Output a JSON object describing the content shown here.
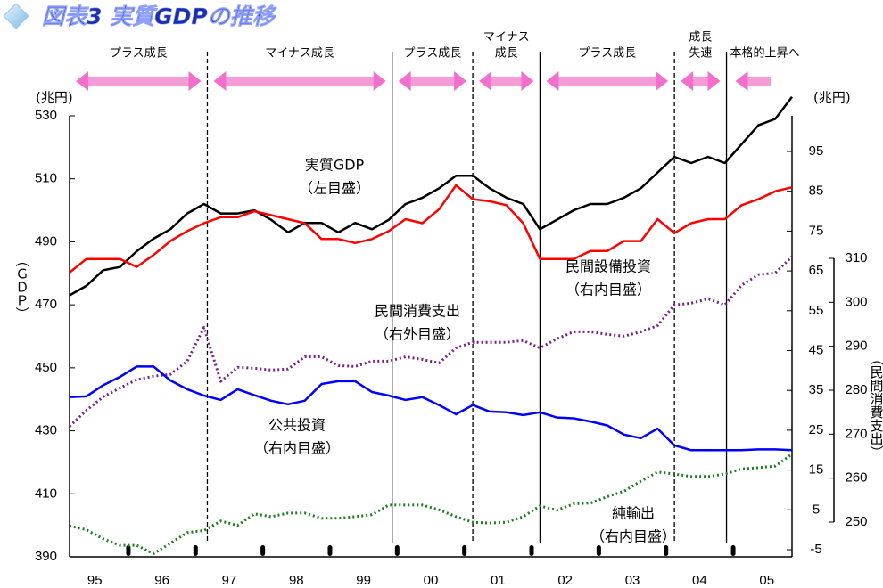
{
  "chart_data": {
    "type": "line",
    "title": "図表3 実質GDPの推移",
    "y_unit": "(兆円)",
    "y2_unit": "(兆円)",
    "y_label": "（ＧＤＰ）",
    "y3_label": "（民間消費支出）",
    "categories": [
      null,
      "95",
      null,
      null,
      null,
      "96",
      null,
      null,
      null,
      "97",
      null,
      null,
      null,
      "98",
      null,
      null,
      null,
      "99",
      null,
      null,
      null,
      "00",
      null,
      null,
      null,
      "01",
      null,
      null,
      null,
      "02",
      null,
      null,
      null,
      "03",
      null,
      null,
      null,
      "04",
      null,
      null,
      null,
      "05",
      null,
      null
    ],
    "ylim": [
      390,
      530
    ],
    "yticks": [
      390,
      410,
      430,
      450,
      470,
      490,
      510,
      530
    ],
    "y2lim": [
      -5,
      95
    ],
    "y2ticks": [
      -5,
      5,
      15,
      25,
      35,
      45,
      55,
      65,
      75,
      85,
      95
    ],
    "y3lim": [
      250,
      310
    ],
    "y3ticks": [
      250,
      260,
      270,
      280,
      290,
      300,
      310
    ],
    "phases": [
      {
        "label": [
          "プラス成長"
        ],
        "from": 0,
        "to": 8.2
      },
      {
        "label": [
          "マイナス成長"
        ],
        "from": 8.2,
        "to": 19.2
      },
      {
        "label": [
          "プラス成長"
        ],
        "from": 19.2,
        "to": 24
      },
      {
        "label": [
          "マイナス",
          "成長"
        ],
        "from": 24,
        "to": 28
      },
      {
        "label": [
          "プラス成長"
        ],
        "from": 28,
        "to": 36
      },
      {
        "label": [
          "成長",
          "失速"
        ],
        "from": 36,
        "to": 39.1
      },
      {
        "label": [
          "本格的上昇へ"
        ],
        "from": 39.1,
        "to": 43
      }
    ],
    "series": [
      {
        "name": "実質GDP",
        "scale_label": "（左目盛）",
        "color": "#000000",
        "style": "solid",
        "axis": "y",
        "values": [
          473,
          476,
          481,
          482,
          487,
          491,
          494,
          499,
          502,
          499,
          499,
          500,
          497,
          493,
          496,
          496,
          493,
          496,
          494,
          497,
          502,
          504,
          507,
          511,
          511,
          507,
          504,
          502,
          494,
          497,
          500,
          502,
          502,
          504,
          507,
          512,
          517,
          515,
          517,
          515,
          521,
          527,
          529,
          536
        ]
      },
      {
        "name": "民間設備投資",
        "scale_label": "（右内目盛）",
        "color": "#ff0000",
        "style": "solid",
        "axis": "y2",
        "values": [
          64.6,
          68,
          68,
          68,
          66,
          69,
          72.5,
          75,
          77,
          78.5,
          78.5,
          80,
          79,
          78,
          77,
          73,
          73,
          72,
          73,
          75,
          78,
          77,
          80.5,
          86.5,
          83,
          82.5,
          81.5,
          77,
          68,
          68,
          68,
          70,
          70,
          72.5,
          72.5,
          78,
          74.5,
          77,
          78,
          78,
          81.5,
          83,
          85,
          86
        ]
      },
      {
        "name": "民間消費支出",
        "scale_label": "（右外目盛）",
        "color": "#7a1f8c",
        "style": "dotted",
        "axis": "y3",
        "values": [
          271.8,
          275.4,
          278.5,
          280.5,
          282.4,
          283.2,
          283.6,
          286.6,
          294.3,
          282,
          285.2,
          285,
          284.6,
          284.8,
          287.6,
          287.6,
          285.6,
          285.4,
          286.6,
          286.6,
          287.6,
          287,
          286.2,
          289.6,
          290.9,
          290.9,
          290.9,
          291.3,
          289.6,
          291.7,
          293.3,
          293.3,
          292.7,
          292.3,
          293.3,
          294.7,
          299.4,
          299.8,
          300.8,
          299.4,
          303.9,
          306.3,
          306.7,
          310.4
        ]
      },
      {
        "name": "公共投資",
        "scale_label": "（右内目盛）",
        "color": "#0000ff",
        "style": "solid",
        "axis": "y2",
        "values": [
          33.3,
          33.5,
          36.3,
          38.4,
          41,
          41,
          37.5,
          35.3,
          33.7,
          32.6,
          35.3,
          33.8,
          32.4,
          31.5,
          32.4,
          36.6,
          37.3,
          37.3,
          34.6,
          33.7,
          32.6,
          33.3,
          31.3,
          29,
          31.3,
          29.7,
          29.5,
          28.8,
          29.5,
          28.2,
          28,
          27.2,
          26.2,
          23.9,
          23,
          25.4,
          21.2,
          20,
          20,
          20,
          20,
          20.2,
          20.2,
          20
        ]
      },
      {
        "name": "純輸出",
        "scale_label": "（右内目盛）",
        "color": "#1e7d1e",
        "style": "dotted",
        "axis": "y2",
        "values": [
          1,
          0,
          -2.3,
          -3.9,
          -3.9,
          -6,
          -3.4,
          -0.7,
          -0.2,
          2.2,
          1.1,
          4,
          3.3,
          4.2,
          4.2,
          2.9,
          2.9,
          3.3,
          3.8,
          6.2,
          6.2,
          6.2,
          5,
          3.3,
          1.9,
          1.7,
          1.9,
          3.3,
          6,
          4.9,
          6.5,
          6.7,
          8.3,
          9.7,
          12.2,
          14.5,
          14,
          13.4,
          13.4,
          14,
          15.3,
          15.6,
          16,
          19
        ]
      }
    ]
  }
}
